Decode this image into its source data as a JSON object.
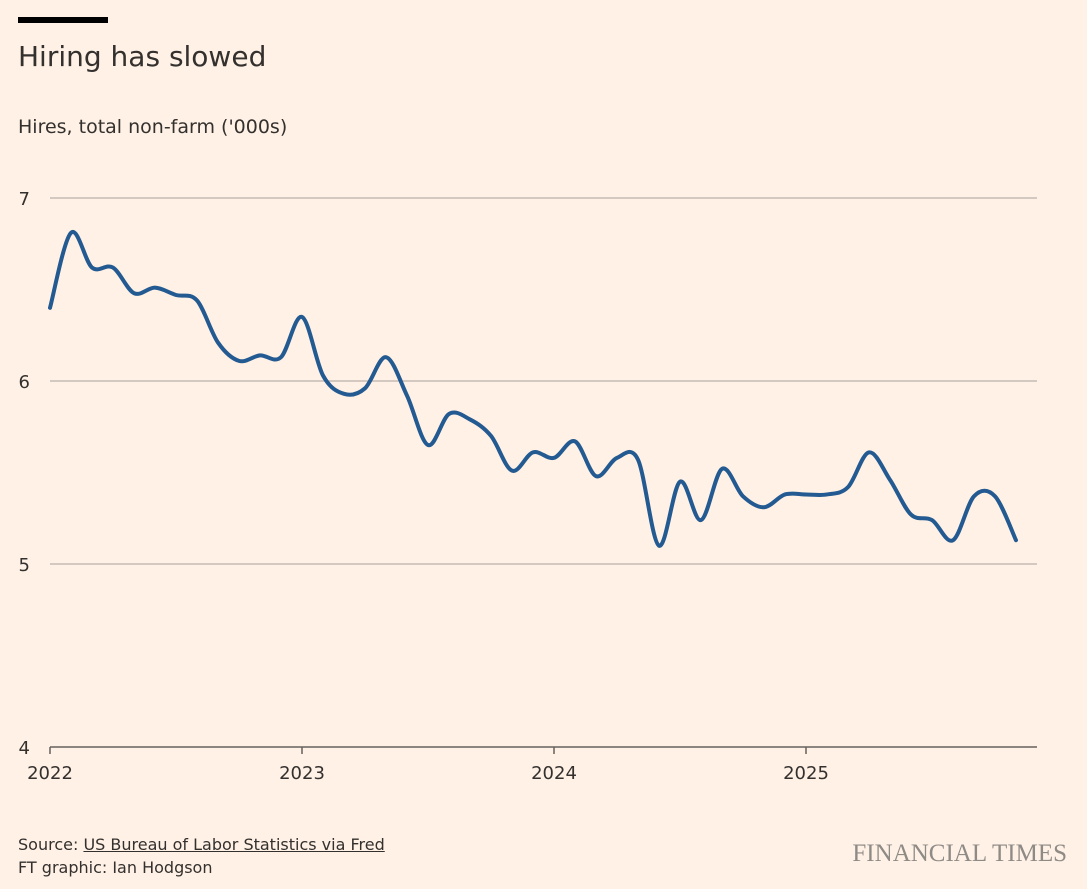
{
  "title": "Hiring has slowed",
  "subtitle": "Hires, total non-farm ('000s)",
  "source_label": "Source: ",
  "source_link": "US Bureau of Labor Statistics via Fred",
  "credit": "FT graphic: Ian Hodgson",
  "logo": "FINANCIAL TIMES",
  "chart_data": {
    "type": "line",
    "title": "Hiring has slowed",
    "ylabel": "Hires, total non-farm ('000s)",
    "ylim": [
      4,
      7
    ],
    "yticks": [
      "4",
      "5",
      "6",
      "7"
    ],
    "xticks": [
      "2022",
      "2023",
      "2024",
      "2025"
    ],
    "xstart": "2022-01",
    "grid": true,
    "line_color": "#235a91",
    "series": [
      {
        "x": [
          "2022-01",
          "2022-02",
          "2022-03",
          "2022-04",
          "2022-05",
          "2022-06",
          "2022-07",
          "2022-08",
          "2022-09",
          "2022-10",
          "2022-11",
          "2022-12",
          "2023-01",
          "2023-02",
          "2023-03",
          "2023-04",
          "2023-05",
          "2023-06",
          "2023-07",
          "2023-08",
          "2023-09",
          "2023-10",
          "2023-11",
          "2023-12",
          "2024-01",
          "2024-02",
          "2024-03",
          "2024-04",
          "2024-05",
          "2024-06",
          "2024-07",
          "2024-08",
          "2024-09",
          "2024-10",
          "2024-11",
          "2024-12",
          "2025-01",
          "2025-02",
          "2025-03",
          "2025-04",
          "2025-05",
          "2025-06",
          "2025-07",
          "2025-08",
          "2025-09",
          "2025-10",
          "2025-11"
        ],
        "values": [
          6.4,
          6.81,
          6.62,
          6.62,
          6.48,
          6.51,
          6.47,
          6.44,
          6.21,
          6.11,
          6.14,
          6.13,
          6.35,
          6.03,
          5.93,
          5.96,
          6.13,
          5.92,
          5.65,
          5.82,
          5.79,
          5.7,
          5.51,
          5.61,
          5.58,
          5.67,
          5.48,
          5.58,
          5.57,
          5.1,
          5.45,
          5.24,
          5.52,
          5.37,
          5.31,
          5.38,
          5.38,
          5.38,
          5.42,
          5.61,
          5.46,
          5.27,
          5.24,
          5.13,
          5.37,
          5.37,
          5.13
        ]
      }
    ]
  }
}
